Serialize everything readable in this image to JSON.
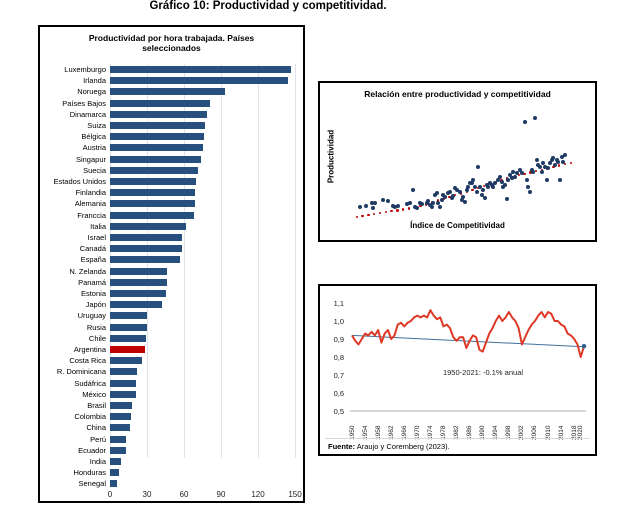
{
  "page": {
    "title": "Gráfico 10: Productividad y competitividad."
  },
  "chart_data": [
    {
      "type": "bar",
      "orientation": "horizontal",
      "title": "Productividad por hora trabajada. Países seleccionados",
      "categories": [
        "Luxemburgo",
        "Irlanda",
        "Noruega",
        "Países Bajos",
        "Dinamarca",
        "Suiza",
        "Bélgica",
        "Austria",
        "Singapur",
        "Suecia",
        "Estados Unidos",
        "Finlandia",
        "Alemania",
        "Franccia",
        "Italia",
        "Israel",
        "Canadá",
        "España",
        "N. Zelanda",
        "Panamá",
        "Estonia",
        "Japón",
        "Uruguay",
        "Rusia",
        "Chile",
        "Argentina",
        "Costa Rica",
        "R. Dominicana",
        "Sudáfrica",
        "México",
        "Brasil",
        "Colombia",
        "China",
        "Perú",
        "Ecuador",
        "India",
        "Honduras",
        "Senegal"
      ],
      "values": [
        147,
        144,
        93,
        81,
        79,
        77,
        76,
        75,
        74,
        71,
        70,
        69,
        69,
        68,
        62,
        58,
        58,
        57,
        46,
        46,
        45,
        42,
        30,
        30,
        29,
        28,
        26,
        22,
        21,
        21,
        18,
        17,
        16,
        13,
        13,
        9,
        7,
        6
      ],
      "highlight_category": "Argentina",
      "xlim": [
        0,
        150
      ],
      "x_ticks": [
        0,
        30,
        60,
        90,
        120,
        150
      ],
      "grid": true,
      "colors": {
        "bar": "#27507E",
        "highlight": "#C00000",
        "grid": "#dde3ea"
      }
    },
    {
      "type": "scatter",
      "title": "Relación entre productividad y competitividad",
      "xlabel": "Índice de Competitividad",
      "ylabel": "Productividad",
      "axes_labeled_only": true,
      "points_pct": [
        [
          4.3,
          12.1
        ],
        [
          7.0,
          12.7
        ],
        [
          9.4,
          15.2
        ],
        [
          10.1,
          11.2
        ],
        [
          10.9,
          15.8
        ],
        [
          14.5,
          18.2
        ],
        [
          16.7,
          17.6
        ],
        [
          18.8,
          12.7
        ],
        [
          19.6,
          12.1
        ],
        [
          21.0,
          13.0
        ],
        [
          24.6,
          14.2
        ],
        [
          26.1,
          15.2
        ],
        [
          27.5,
          27.3
        ],
        [
          28.3,
          12.1
        ],
        [
          29.0,
          10.6
        ],
        [
          30.4,
          15.8
        ],
        [
          31.2,
          14.5
        ],
        [
          33.3,
          15.8
        ],
        [
          34.1,
          17.6
        ],
        [
          34.8,
          13.6
        ],
        [
          35.5,
          12.1
        ],
        [
          36.2,
          15.2
        ],
        [
          37.0,
          22.7
        ],
        [
          37.7,
          24.2
        ],
        [
          38.4,
          15.8
        ],
        [
          39.1,
          12.1
        ],
        [
          39.9,
          18.2
        ],
        [
          40.6,
          22.7
        ],
        [
          41.3,
          21.2
        ],
        [
          42.8,
          24.2
        ],
        [
          43.5,
          25.8
        ],
        [
          44.2,
          19.7
        ],
        [
          44.9,
          21.8
        ],
        [
          45.7,
          28.8
        ],
        [
          46.4,
          27.3
        ],
        [
          47.8,
          25.8
        ],
        [
          48.6,
          18.2
        ],
        [
          49.3,
          21.2
        ],
        [
          50.0,
          16.7
        ],
        [
          50.7,
          27.3
        ],
        [
          51.4,
          30.3
        ],
        [
          52.2,
          33.3
        ],
        [
          52.9,
          33.9
        ],
        [
          53.6,
          36.4
        ],
        [
          54.3,
          30.3
        ],
        [
          55.1,
          25.8
        ],
        [
          55.8,
          47.9
        ],
        [
          56.5,
          30.3
        ],
        [
          57.2,
          22.7
        ],
        [
          58.0,
          27.3
        ],
        [
          58.7,
          19.7
        ],
        [
          59.4,
          31.8
        ],
        [
          60.1,
          30.3
        ],
        [
          60.9,
          33.3
        ],
        [
          61.6,
          31.8
        ],
        [
          62.3,
          30.3
        ],
        [
          63.0,
          33.9
        ],
        [
          64.5,
          36.4
        ],
        [
          65.2,
          39.4
        ],
        [
          65.9,
          34.8
        ],
        [
          66.7,
          30.3
        ],
        [
          67.4,
          31.8
        ],
        [
          68.1,
          18.8
        ],
        [
          68.8,
          36.4
        ],
        [
          69.6,
          40.9
        ],
        [
          70.3,
          37.9
        ],
        [
          71.0,
          43.9
        ],
        [
          71.7,
          39.4
        ],
        [
          72.5,
          42.4
        ],
        [
          73.9,
          45.5
        ],
        [
          74.6,
          42.4
        ],
        [
          76.1,
          89.4
        ],
        [
          76.8,
          36.4
        ],
        [
          77.5,
          30.3
        ],
        [
          78.3,
          25.8
        ],
        [
          79.0,
          45.5
        ],
        [
          79.7,
          43.9
        ],
        [
          80.4,
          92.4
        ],
        [
          81.2,
          54.5
        ],
        [
          81.9,
          50.0
        ],
        [
          82.6,
          48.5
        ],
        [
          83.3,
          43.9
        ],
        [
          84.1,
          51.5
        ],
        [
          84.8,
          48.5
        ],
        [
          85.5,
          36.4
        ],
        [
          86.2,
          47.0
        ],
        [
          87.0,
          51.5
        ],
        [
          87.7,
          54.5
        ],
        [
          88.4,
          56.1
        ],
        [
          89.1,
          50.0
        ],
        [
          89.9,
          54.5
        ],
        [
          90.6,
          53.0
        ],
        [
          91.3,
          36.4
        ],
        [
          92.0,
          57.6
        ],
        [
          92.8,
          53.0
        ],
        [
          93.5,
          59.1
        ]
      ],
      "trendline_pct": [
        [
          3,
          3
        ],
        [
          29,
          11.5
        ],
        [
          51,
          26
        ],
        [
          72,
          40
        ],
        [
          96,
          52
        ]
      ],
      "trend_dot_count": 38,
      "colors": {
        "dot": "#1F3A64",
        "trend": "#C00000"
      }
    },
    {
      "type": "line",
      "x_start_year": 1950,
      "x_end_year": 2021,
      "values": [
        0.92,
        0.89,
        0.87,
        0.9,
        0.93,
        0.92,
        0.94,
        0.92,
        0.95,
        0.88,
        0.93,
        0.95,
        0.9,
        0.92,
        0.98,
        0.99,
        0.97,
        0.99,
        1.0,
        1.02,
        1.03,
        1.02,
        1.03,
        1.02,
        1.06,
        1.03,
        1.01,
        1.02,
        0.97,
        0.98,
        0.96,
        0.91,
        0.89,
        0.91,
        0.91,
        0.85,
        0.89,
        0.92,
        0.91,
        0.84,
        0.83,
        0.88,
        0.93,
        0.96,
        1.0,
        1.03,
        1.0,
        1.02,
        1.05,
        1.02,
        1.0,
        0.96,
        0.87,
        0.91,
        0.95,
        0.98,
        1.0,
        1.03,
        1.05,
        1.02,
        1.05,
        1.04,
        1.0,
        1.0,
        0.98,
        0.97,
        0.93,
        0.92,
        0.9,
        0.87,
        0.8,
        0.86
      ],
      "ylim": [
        0.5,
        1.1
      ],
      "y_tick_labels": [
        "1,1",
        "1,0",
        "0,9",
        "0,8",
        "0,7",
        "0,6",
        "0,5"
      ],
      "x_tick_labels": [
        "1950",
        "1954",
        "1958",
        "1962",
        "1966",
        "1970",
        "1974",
        "1978",
        "1982",
        "1986",
        "1990",
        "1994",
        "1998",
        "2002",
        "2006",
        "2010",
        "2014",
        "2018",
        "2020"
      ],
      "trendline": {
        "start_value": 0.92,
        "end_value": 0.857,
        "end_dot": true
      },
      "annotation": "1950-2021: -0.1% anual",
      "source_bold": "Fuente:",
      "source_rest": " Araujo y Coremberg (2023).",
      "colors": {
        "line": "#DD3926",
        "trend": "#41719C",
        "baseline": "#c8c8c8",
        "end_dot": "#2E5A8F"
      }
    }
  ]
}
